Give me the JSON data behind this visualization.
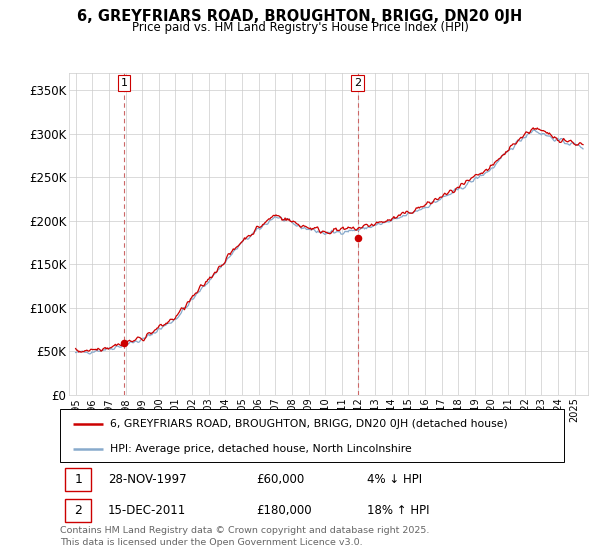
{
  "title": "6, GREYFRIARS ROAD, BROUGHTON, BRIGG, DN20 0JH",
  "subtitle": "Price paid vs. HM Land Registry's House Price Index (HPI)",
  "property_label": "6, GREYFRIARS ROAD, BROUGHTON, BRIGG, DN20 0JH (detached house)",
  "hpi_label": "HPI: Average price, detached house, North Lincolnshire",
  "sale1_date": "28-NOV-1997",
  "sale1_price": 60000,
  "sale1_note": "4% ↓ HPI",
  "sale2_date": "15-DEC-2011",
  "sale2_price": 180000,
  "sale2_note": "18% ↑ HPI",
  "footer": "Contains HM Land Registry data © Crown copyright and database right 2025.\nThis data is licensed under the Open Government Licence v3.0.",
  "property_color": "#cc0000",
  "hpi_color": "#88aacc",
  "vline_color": "#cc6666",
  "grid_color": "#cccccc",
  "background_color": "#ffffff",
  "ylim": [
    0,
    370000
  ],
  "yticks": [
    0,
    50000,
    100000,
    150000,
    200000,
    250000,
    300000,
    350000
  ],
  "ytick_labels": [
    "£0",
    "£50K",
    "£100K",
    "£150K",
    "£200K",
    "£250K",
    "£300K",
    "£350K"
  ],
  "sale1_x": 1997.9,
  "sale2_x": 2011.96,
  "xlim_left": 1994.6,
  "xlim_right": 2025.8
}
